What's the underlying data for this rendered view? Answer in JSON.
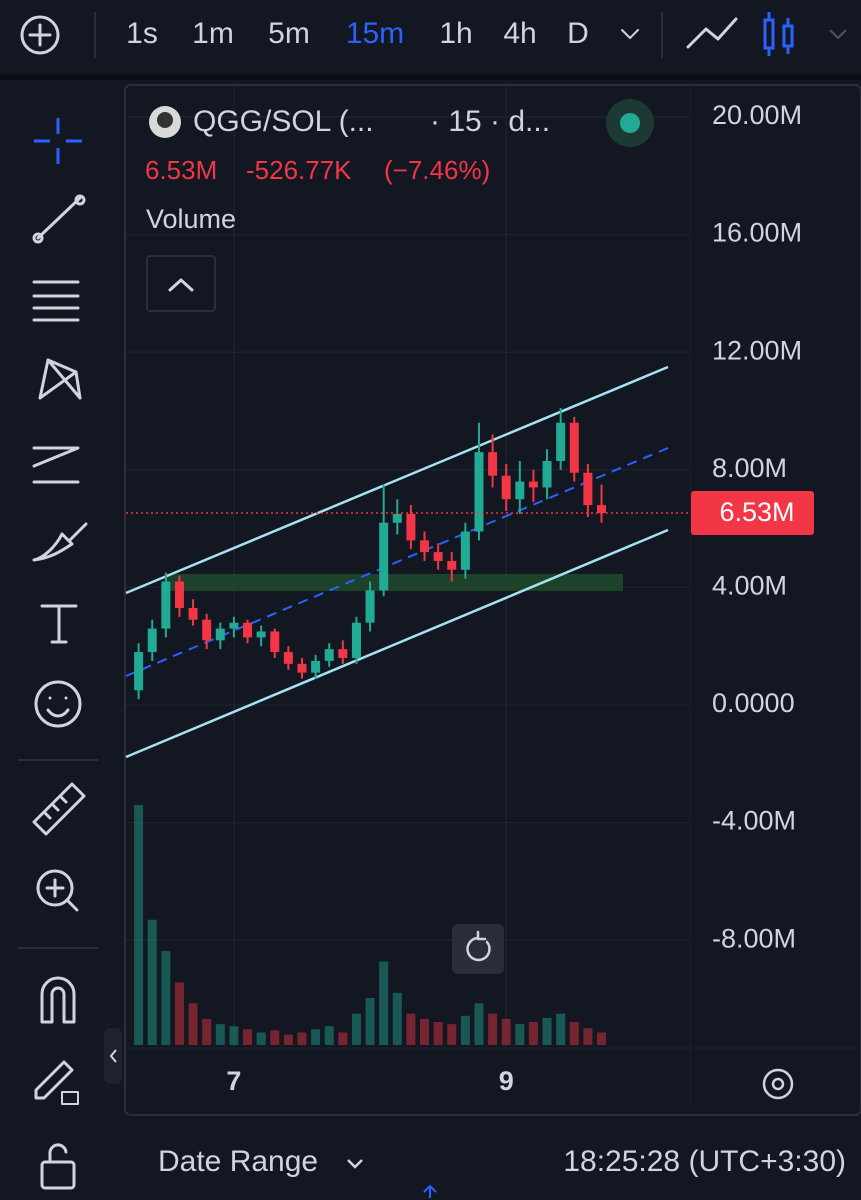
{
  "toolbar": {
    "intervals": [
      "1s",
      "1m",
      "5m",
      "15m",
      "1h",
      "4h",
      "D"
    ],
    "active_interval": 3
  },
  "legend": {
    "symbol": "QGG/SOL (...",
    "meta": "· 15 · d...",
    "change": "-526.77K",
    "change_pct": "(−7.46%)",
    "indicator": "Volume"
  },
  "chart_data": {
    "type": "candlestick",
    "x": [
      6.3,
      6.4,
      6.5,
      6.6,
      6.7,
      6.8,
      6.9,
      7.0,
      7.1,
      7.2,
      7.3,
      7.4,
      7.5,
      7.6,
      7.7,
      7.8,
      7.9,
      8.0,
      8.1,
      8.2,
      8.3,
      8.4,
      8.5,
      8.6,
      8.7,
      8.8,
      8.9,
      9.0,
      9.1,
      9.2,
      9.3,
      9.4,
      9.5,
      9.6,
      9.7
    ],
    "open": [
      500000,
      1800000,
      2600000,
      4200000,
      3300000,
      2900000,
      2200000,
      2600000,
      2800000,
      2300000,
      2500000,
      1800000,
      1400000,
      1100000,
      1500000,
      1900000,
      1600000,
      2800000,
      3900000,
      6200000,
      6500000,
      5600000,
      5200000,
      4900000,
      4600000,
      5900000,
      8600000,
      7800000,
      7000000,
      7600000,
      7400000,
      8300000,
      9600000,
      7900000,
      6800000
    ],
    "high": [
      2100000,
      2900000,
      4500000,
      4400000,
      3600000,
      3100000,
      2800000,
      3000000,
      2900000,
      2700000,
      2600000,
      2000000,
      1600000,
      1700000,
      2100000,
      2200000,
      3000000,
      4200000,
      7500000,
      7000000,
      6800000,
      5900000,
      5500000,
      5200000,
      6200000,
      9600000,
      9200000,
      8200000,
      8300000,
      8000000,
      8700000,
      10100000,
      9800000,
      8200000,
      7500000
    ],
    "low": [
      200000,
      1500000,
      2300000,
      3000000,
      2700000,
      1900000,
      1900000,
      2300000,
      2100000,
      2000000,
      1600000,
      1200000,
      900000,
      900000,
      1300000,
      1400000,
      1400000,
      2500000,
      3700000,
      5800000,
      5300000,
      4900000,
      4600000,
      4200000,
      4300000,
      5600000,
      7400000,
      6600000,
      6500000,
      6900000,
      7000000,
      8000000,
      7600000,
      6400000,
      6200000
    ],
    "close": [
      1800000,
      2600000,
      4200000,
      3300000,
      2900000,
      2200000,
      2600000,
      2800000,
      2300000,
      2500000,
      1800000,
      1400000,
      1100000,
      1500000,
      1900000,
      1600000,
      2800000,
      3900000,
      6200000,
      6500000,
      5600000,
      5200000,
      4900000,
      4600000,
      5900000,
      8600000,
      7800000,
      7000000,
      7600000,
      7400000,
      8300000,
      9600000,
      7900000,
      6800000,
      6530000
    ],
    "volume": [
      230,
      120,
      90,
      60,
      40,
      25,
      20,
      18,
      15,
      12,
      14,
      10,
      12,
      15,
      18,
      12,
      30,
      45,
      80,
      50,
      30,
      25,
      22,
      20,
      28,
      40,
      30,
      25,
      20,
      22,
      26,
      30,
      22,
      16,
      12
    ],
    "up_color": "#22ab94",
    "down_color": "#f23645",
    "xlim": [
      6.2,
      10.35
    ],
    "xticks": [
      7,
      9
    ],
    "ylim": [
      -10000000,
      20000000
    ],
    "yticks": [
      {
        "value": 20000000,
        "label": "20.00M"
      },
      {
        "value": 16000000,
        "label": "16.00M"
      },
      {
        "value": 12000000,
        "label": "12.00M"
      },
      {
        "value": 8000000,
        "label": "8.00M"
      },
      {
        "value": 4000000,
        "label": "4.00M"
      },
      {
        "value": 0,
        "label": "0.0000"
      },
      {
        "value": -4000000,
        "label": "-4.00M"
      },
      {
        "value": -8000000,
        "label": "-8.00M"
      }
    ],
    "last_price": {
      "value": 6530000,
      "label": "6.53M"
    },
    "grid": true
  },
  "footer": {
    "date_range": "Date Range",
    "clock": "18:25:28 (UTC+3:30)"
  }
}
